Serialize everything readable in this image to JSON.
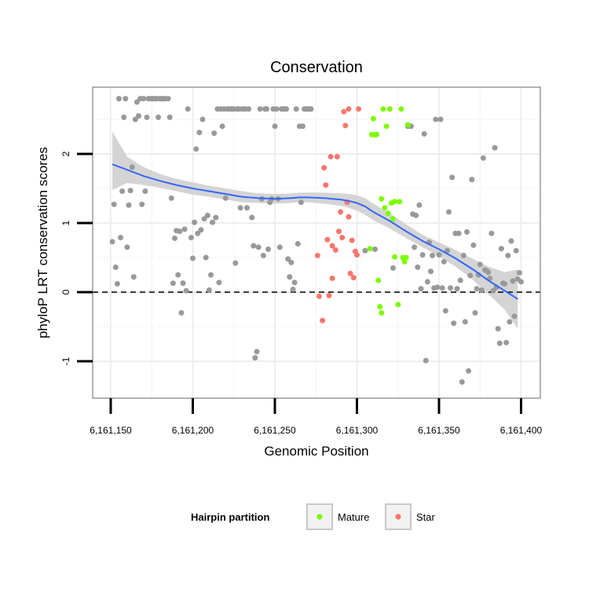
{
  "chart_data": {
    "type": "scatter",
    "title": "Conservation",
    "xlabel": "Genomic Position",
    "ylabel": "phyloP LRT conservation scores",
    "xlim": [
      6161142,
      6161403
    ],
    "ylim": [
      -1.5,
      3.0
    ],
    "xticks": [
      6161150,
      6161200,
      6161250,
      6161300,
      6161350,
      6161400
    ],
    "xtick_labels": [
      "6,161,150",
      "6,161,200",
      "6,161,250",
      "6,161,300",
      "6,161,350",
      "6,161,400"
    ],
    "yticks": [
      -1,
      0,
      1,
      2
    ],
    "ytick_labels": [
      "-1",
      "0",
      "1",
      "2"
    ],
    "reference_line": {
      "y": 0,
      "style": "dashed"
    },
    "colors": {
      "Other": "#999999",
      "Mature": "#7CFC00",
      "Star": "#F8766D",
      "smooth": "#3366FF",
      "ribbon": "#cccccc"
    },
    "legend": {
      "title": "Hairpin partition",
      "position": "bottom",
      "entries": [
        {
          "name": "Mature",
          "color": "#7CFC00"
        },
        {
          "name": "Star",
          "color": "#F8766D"
        }
      ]
    },
    "series": [
      {
        "name": "Other",
        "points": [
          [
            6161151,
            0.73
          ],
          [
            6161152,
            1.27
          ],
          [
            6161153,
            0.36
          ],
          [
            6161154,
            0.12
          ],
          [
            6161155,
            2.8
          ],
          [
            6161156,
            0.79
          ],
          [
            6161157,
            1.46
          ],
          [
            6161158,
            2.53
          ],
          [
            6161159,
            2.8
          ],
          [
            6161160,
            0.65
          ],
          [
            6161161,
            1.26
          ],
          [
            6161162,
            1.47
          ],
          [
            6161163,
            1.81
          ],
          [
            6161164,
            0.22
          ],
          [
            6161165,
            2.5
          ],
          [
            6161166,
            2.75
          ],
          [
            6161167,
            2.55
          ],
          [
            6161168,
            2.8
          ],
          [
            6161169,
            1.27
          ],
          [
            6161170,
            2.8
          ],
          [
            6161171,
            1.46
          ],
          [
            6161172,
            2.53
          ],
          [
            6161173,
            2.8
          ],
          [
            6161174,
            2.8
          ],
          [
            6161175,
            2.8
          ],
          [
            6161176,
            2.8
          ],
          [
            6161177,
            2.8
          ],
          [
            6161178,
            2.8
          ],
          [
            6161179,
            2.53
          ],
          [
            6161180,
            2.8
          ],
          [
            6161181,
            2.8
          ],
          [
            6161182,
            2.8
          ],
          [
            6161183,
            2.8
          ],
          [
            6161185,
            2.8
          ],
          [
            6161186,
            2.53
          ],
          [
            6161187,
            1.36
          ],
          [
            6161188,
            0.13
          ],
          [
            6161189,
            0.78
          ],
          [
            6161190,
            0.89
          ],
          [
            6161191,
            0.25
          ],
          [
            6161192,
            0.88
          ],
          [
            6161193,
            -0.3
          ],
          [
            6161194,
            0.13
          ],
          [
            6161195,
            0.91
          ],
          [
            6161196,
            0.02
          ],
          [
            6161197,
            2.65
          ],
          [
            6161199,
            0.79
          ],
          [
            6161200,
            0.49
          ],
          [
            6161201,
            1.01
          ],
          [
            6161202,
            2.07
          ],
          [
            6161203,
            0.85
          ],
          [
            6161204,
            2.31
          ],
          [
            6161205,
            0.9
          ],
          [
            6161206,
            2.5
          ],
          [
            6161207,
            1.06
          ],
          [
            6161208,
            0.5
          ],
          [
            6161209,
            1.11
          ],
          [
            6161210,
            0.03
          ],
          [
            6161211,
            0.25
          ],
          [
            6161212,
            1.01
          ],
          [
            6161213,
            2.3
          ],
          [
            6161214,
            1.08
          ],
          [
            6161215,
            2.65
          ],
          [
            6161216,
            0.14
          ],
          [
            6161217,
            2.65
          ],
          [
            6161218,
            2.4
          ],
          [
            6161219,
            2.65
          ],
          [
            6161220,
            1.36
          ],
          [
            6161221,
            2.65
          ],
          [
            6161222,
            2.65
          ],
          [
            6161223,
            2.65
          ],
          [
            6161224,
            2.65
          ],
          [
            6161225,
            2.65
          ],
          [
            6161226,
            0.42
          ],
          [
            6161227,
            2.65
          ],
          [
            6161228,
            2.65
          ],
          [
            6161229,
            1.22
          ],
          [
            6161230,
            2.65
          ],
          [
            6161231,
            2.65
          ],
          [
            6161232,
            2.65
          ],
          [
            6161233,
            1.22
          ],
          [
            6161234,
            2.65
          ],
          [
            6161236,
            1.08
          ],
          [
            6161237,
            0.67
          ],
          [
            6161238,
            -0.95
          ],
          [
            6161239,
            -0.86
          ],
          [
            6161240,
            0.65
          ],
          [
            6161241,
            2.65
          ],
          [
            6161242,
            1.35
          ],
          [
            6161243,
            0.53
          ],
          [
            6161244,
            2.65
          ],
          [
            6161245,
            2.65
          ],
          [
            6161246,
            0.62
          ],
          [
            6161247,
            1.3
          ],
          [
            6161248,
            1.35
          ],
          [
            6161249,
            2.65
          ],
          [
            6161250,
            2.4
          ],
          [
            6161251,
            2.65
          ],
          [
            6161252,
            1.35
          ],
          [
            6161253,
            0.65
          ],
          [
            6161254,
            2.65
          ],
          [
            6161255,
            2.65
          ],
          [
            6161256,
            2.65
          ],
          [
            6161257,
            2.65
          ],
          [
            6161258,
            0.48
          ],
          [
            6161259,
            0.22
          ],
          [
            6161260,
            0.43
          ],
          [
            6161261,
            0.04
          ],
          [
            6161262,
            0.14
          ],
          [
            6161263,
            2.65
          ],
          [
            6161264,
            0.7
          ],
          [
            6161265,
            2.4
          ],
          [
            6161266,
            1.3
          ],
          [
            6161267,
            2.4
          ],
          [
            6161268,
            2.65
          ],
          [
            6161269,
            2.65
          ],
          [
            6161270,
            2.65
          ],
          [
            6161271,
            2.65
          ],
          [
            6161272,
            2.65
          ],
          [
            6161305,
            0.6
          ],
          [
            6161311,
            0.62
          ],
          [
            6161322,
            0.35
          ],
          [
            6161331,
            2.4
          ],
          [
            6161333,
            2.4
          ],
          [
            6161334,
            1.13
          ],
          [
            6161335,
            0.65
          ],
          [
            6161336,
            1.11
          ],
          [
            6161337,
            0.36
          ],
          [
            6161338,
            1.26
          ],
          [
            6161339,
            0.05
          ],
          [
            6161340,
            0.54
          ],
          [
            6161341,
            2.29
          ],
          [
            6161342,
            -0.99
          ],
          [
            6161343,
            0.15
          ],
          [
            6161344,
            0.72
          ],
          [
            6161345,
            0.3
          ],
          [
            6161346,
            0.53
          ],
          [
            6161347,
            0.06
          ],
          [
            6161348,
            2.5
          ],
          [
            6161349,
            0.07
          ],
          [
            6161350,
            0.54
          ],
          [
            6161351,
            2.5
          ],
          [
            6161352,
            0.06
          ],
          [
            6161353,
            0.44
          ],
          [
            6161354,
            -0.27
          ],
          [
            6161355,
            0.6
          ],
          [
            6161356,
            1.16
          ],
          [
            6161357,
            0.06
          ],
          [
            6161358,
            1.66
          ],
          [
            6161359,
            -0.45
          ],
          [
            6161360,
            0.85
          ],
          [
            6161361,
            0.05
          ],
          [
            6161362,
            0.85
          ],
          [
            6161363,
            0.17
          ],
          [
            6161364,
            -1.3
          ],
          [
            6161365,
            0.53
          ],
          [
            6161366,
            -0.43
          ],
          [
            6161367,
            0.87
          ],
          [
            6161368,
            -1.14
          ],
          [
            6161369,
            0.24
          ],
          [
            6161370,
            1.63
          ],
          [
            6161371,
            0.68
          ],
          [
            6161372,
            -0.3
          ],
          [
            6161373,
            0.05
          ],
          [
            6161374,
            0.25
          ],
          [
            6161375,
            0.4
          ],
          [
            6161376,
            0.03
          ],
          [
            6161377,
            1.94
          ],
          [
            6161378,
            0.32
          ],
          [
            6161379,
            0.31
          ],
          [
            6161380,
            0.29
          ],
          [
            6161381,
            0.2
          ],
          [
            6161382,
            0.85
          ],
          [
            6161383,
            0.02
          ],
          [
            6161384,
            2.09
          ],
          [
            6161385,
            0.07
          ],
          [
            6161386,
            -0.53
          ],
          [
            6161387,
            -0.74
          ],
          [
            6161388,
            0.63
          ],
          [
            6161389,
            0.13
          ],
          [
            6161390,
            0.12
          ],
          [
            6161391,
            -0.73
          ],
          [
            6161392,
            0.53
          ],
          [
            6161393,
            -0.43
          ],
          [
            6161394,
            0.74
          ],
          [
            6161395,
            0.16
          ],
          [
            6161396,
            -0.35
          ],
          [
            6161397,
            0.6
          ],
          [
            6161398,
            0.19
          ],
          [
            6161399,
            0.28
          ],
          [
            6161400,
            0.15
          ]
        ]
      },
      {
        "name": "Mature",
        "points": [
          [
            6161308,
            0.63
          ],
          [
            6161309,
            2.28
          ],
          [
            6161310,
            2.51
          ],
          [
            6161311,
            2.28
          ],
          [
            6161312,
            2.28
          ],
          [
            6161313,
            0.17
          ],
          [
            6161314,
            -0.21
          ],
          [
            6161315,
            -0.3
          ],
          [
            6161315,
            1.35
          ],
          [
            6161316,
            2.65
          ],
          [
            6161317,
            1.22
          ],
          [
            6161318,
            2.4
          ],
          [
            6161319,
            1.14
          ],
          [
            6161320,
            2.65
          ],
          [
            6161321,
            1.29
          ],
          [
            6161322,
            1.06
          ],
          [
            6161323,
            1.31
          ],
          [
            6161323,
            0.51
          ],
          [
            6161325,
            -0.18
          ],
          [
            6161326,
            1.31
          ],
          [
            6161327,
            2.65
          ],
          [
            6161328,
            0.5
          ],
          [
            6161329,
            0.44
          ],
          [
            6161330,
            0.5
          ],
          [
            6161331,
            2.42
          ]
        ]
      },
      {
        "name": "Star",
        "points": [
          [
            6161276,
            0.53
          ],
          [
            6161277,
            -0.06
          ],
          [
            6161279,
            -0.41
          ],
          [
            6161280,
            1.8
          ],
          [
            6161281,
            1.55
          ],
          [
            6161282,
            0.76
          ],
          [
            6161283,
            -0.05
          ],
          [
            6161284,
            1.96
          ],
          [
            6161285,
            0.2
          ],
          [
            6161285,
            0.67
          ],
          [
            6161287,
            0.61
          ],
          [
            6161288,
            1.96
          ],
          [
            6161289,
            0.88
          ],
          [
            6161290,
            1.16
          ],
          [
            6161291,
            0.79
          ],
          [
            6161292,
            2.61
          ],
          [
            6161293,
            2.41
          ],
          [
            6161294,
            1.3
          ],
          [
            6161295,
            2.65
          ],
          [
            6161295,
            1.09
          ],
          [
            6161296,
            0.27
          ],
          [
            6161297,
            0.75
          ],
          [
            6161298,
            0.21
          ],
          [
            6161299,
            0.59
          ],
          [
            6161300,
            0.54
          ],
          [
            6161301,
            2.65
          ]
        ]
      }
    ],
    "smooth": {
      "type": "loess",
      "x": [
        6161151,
        6161160,
        6161170,
        6161180,
        6161190,
        6161200,
        6161210,
        6161220,
        6161230,
        6161240,
        6161250,
        6161260,
        6161265,
        6161270,
        6161280,
        6161290,
        6161295,
        6161300,
        6161305,
        6161310,
        6161320,
        6161330,
        6161340,
        6161350,
        6161360,
        6161370,
        6161380,
        6161390,
        6161398
      ],
      "y": [
        1.85,
        1.77,
        1.68,
        1.61,
        1.55,
        1.5,
        1.46,
        1.42,
        1.38,
        1.36,
        1.35,
        1.36,
        1.37,
        1.37,
        1.36,
        1.34,
        1.32,
        1.29,
        1.24,
        1.16,
        1.03,
        0.88,
        0.74,
        0.62,
        0.49,
        0.34,
        0.17,
        0.02,
        -0.1
      ],
      "lower": [
        1.48,
        1.58,
        1.55,
        1.51,
        1.46,
        1.41,
        1.38,
        1.34,
        1.3,
        1.29,
        1.28,
        1.29,
        1.3,
        1.3,
        1.28,
        1.25,
        1.22,
        1.18,
        1.12,
        1.04,
        0.92,
        0.78,
        0.65,
        0.52,
        0.37,
        0.19,
        -0.03,
        -0.25,
        -0.53
      ],
      "upper": [
        2.32,
        1.96,
        1.81,
        1.71,
        1.64,
        1.59,
        1.54,
        1.5,
        1.46,
        1.43,
        1.42,
        1.43,
        1.44,
        1.44,
        1.44,
        1.43,
        1.42,
        1.4,
        1.36,
        1.28,
        1.14,
        0.98,
        0.83,
        0.72,
        0.61,
        0.49,
        0.37,
        0.29,
        0.33
      ]
    }
  }
}
